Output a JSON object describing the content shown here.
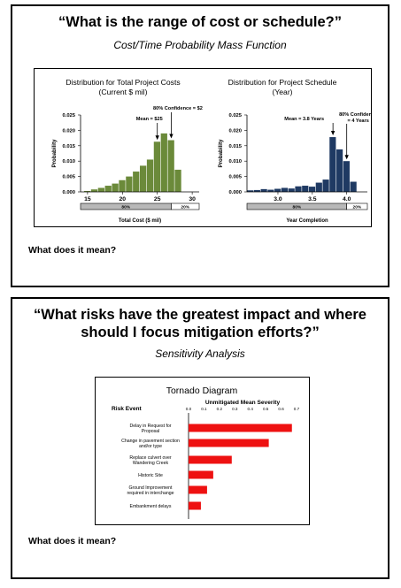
{
  "slide1": {
    "title": "“What is the range of cost or schedule?”",
    "subtitle": "Cost/Time Probability Mass Function",
    "question": "What does it mean?"
  },
  "slide2": {
    "title_line1": "“What risks have the greatest impact and where",
    "title_line2": "should I focus mitigation efforts?”",
    "subtitle": "Sensitivity Analysis",
    "question": "What does it mean?"
  },
  "chart_data": [
    {
      "type": "bar",
      "title_line1": "Distribution for Total Project Costs",
      "title_line2": "(Current $ mil)",
      "xlabel": "Total Cost ($ mil)",
      "ylabel": "Probability",
      "xlim": [
        14,
        31
      ],
      "ylim": [
        0,
        0.025
      ],
      "xticks": [
        15,
        20,
        25,
        30
      ],
      "yticks": [
        "0.000",
        "0.005",
        "0.010",
        "0.015",
        "0.020",
        "0.025"
      ],
      "bar_color": "#6b8a3a",
      "bin_width": 1,
      "x": [
        15,
        16,
        17,
        18,
        19,
        20,
        21,
        22,
        23,
        24,
        25,
        26,
        27,
        28
      ],
      "values": [
        0.0003,
        0.0008,
        0.0013,
        0.002,
        0.0027,
        0.0038,
        0.005,
        0.0066,
        0.0085,
        0.0105,
        0.0163,
        0.019,
        0.0168,
        0.0072
      ],
      "annotations": [
        {
          "text": "Mean = $25",
          "x": 25
        },
        {
          "text": "80% Confidence = $27",
          "x": 27
        }
      ],
      "confidence_bar": {
        "split_x": 27,
        "left_label": "80%",
        "right_label": "20%"
      }
    },
    {
      "type": "bar",
      "title_line1": "Distribution for Project Schedule",
      "title_line2": "(Year)",
      "xlabel": "Year Completion",
      "ylabel": "Probability",
      "xlim": [
        2.55,
        4.3
      ],
      "ylim": [
        0,
        0.025
      ],
      "xticks": [
        3.0,
        3.5,
        4.0
      ],
      "yticks": [
        "0.000",
        "0.005",
        "0.010",
        "0.015",
        "0.020",
        "0.025"
      ],
      "bar_color": "#1f3a63",
      "bin_width": 0.1,
      "x": [
        2.6,
        2.7,
        2.8,
        2.9,
        3.0,
        3.1,
        3.2,
        3.3,
        3.4,
        3.5,
        3.6,
        3.7,
        3.8,
        3.9,
        4.0,
        4.1
      ],
      "values": [
        0.0005,
        0.0006,
        0.0009,
        0.0007,
        0.001,
        0.0013,
        0.0011,
        0.0018,
        0.002,
        0.0017,
        0.003,
        0.004,
        0.0178,
        0.0138,
        0.01,
        0.0033
      ],
      "annotations": [
        {
          "text": "Mean = 3.8 Years",
          "x": 3.8
        },
        {
          "text_line1": "80% Confidence",
          "text_line2": "= 4 Years",
          "x": 4.0
        }
      ],
      "confidence_bar": {
        "split_x": 4.0,
        "left_label": "80%",
        "right_label": "20%"
      }
    },
    {
      "type": "bar",
      "orientation": "horizontal",
      "title": "Tornado Diagram",
      "xlabel": "Unmitigated Mean Severity",
      "category_header": "Risk Event",
      "xlim": [
        0,
        0.7
      ],
      "xticks": [
        "0.0",
        "0.1",
        "0.2",
        "0.3",
        "0.4",
        "0.5",
        "0.6",
        "0.7"
      ],
      "bar_color": "#ee1111",
      "categories": [
        [
          "Delay in Request for",
          "Proposal"
        ],
        [
          "Change in pavement section",
          "and/or type"
        ],
        [
          "Replace culvert over",
          "Wandering Creek"
        ],
        [
          "Historic Site"
        ],
        [
          "Ground Improvement",
          "required in interchange"
        ],
        [
          "Embankment delays"
        ]
      ],
      "values": [
        0.67,
        0.52,
        0.28,
        0.16,
        0.12,
        0.08
      ]
    }
  ]
}
